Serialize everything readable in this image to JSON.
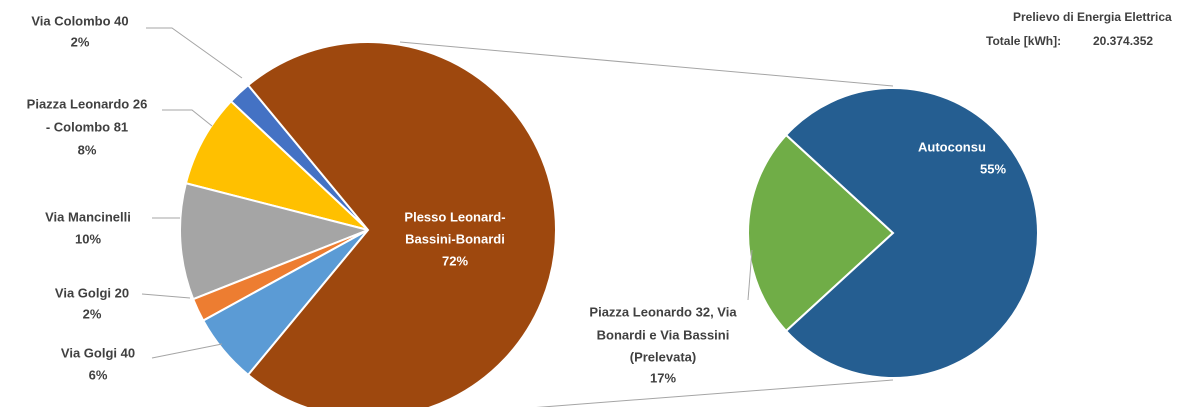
{
  "chart_data": [
    {
      "type": "pie",
      "categories": [
        [
          "Plesso Leonard-",
          "Bassini-Bonardi"
        ],
        [
          "Via Colombo 40"
        ],
        [
          "Piazza Leonardo 26",
          "- Colombo 81"
        ],
        [
          "Via Mancinelli"
        ],
        [
          "Via Golgi 20"
        ],
        [
          "Via Golgi 40"
        ]
      ],
      "values": [
        72,
        2,
        8,
        10,
        2,
        6
      ],
      "value_labels": [
        "72%",
        "2%",
        "8%",
        "10%",
        "2%",
        "6%"
      ],
      "colors": [
        "#9e480e",
        "#4472c4",
        "#ffc000",
        "#a5a5a5",
        "#ed7d31",
        "#5b9bd5"
      ]
    },
    {
      "type": "pie",
      "categories": [
        [
          "Autoconsu"
        ],
        [
          "Piazza Leonardo 32, Via",
          "Bonardi e Via Bassini",
          "(Prelevata)"
        ]
      ],
      "values": [
        55,
        17
      ],
      "value_labels": [
        "55%",
        "17%"
      ],
      "colors": [
        "#255e91",
        "#70ad47"
      ],
      "annotation": {
        "lines": [
          "Prelievo di Energia Elettrica",
          "Totale [kWh]:"
        ],
        "value": {
          "value": 20374352,
          "label": "20.374.352"
        }
      }
    }
  ]
}
